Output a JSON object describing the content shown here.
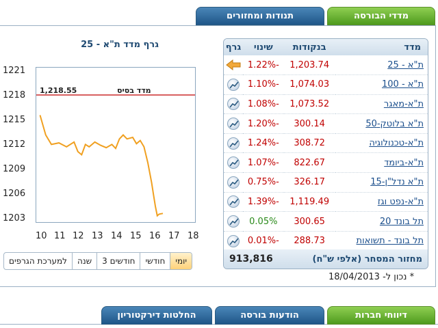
{
  "top_tabs": [
    {
      "label": "מדדי הבורסה",
      "color": "green"
    },
    {
      "label": "תנודות ומחזורים",
      "color": "blue"
    }
  ],
  "chart": {
    "title": "גרף מדד ת\"א - 25",
    "base_label": "מדד בסיס",
    "base_value": "1,218.55"
  },
  "chart_data": {
    "type": "line",
    "title": "גרף מדד ת\"א - 25",
    "xlabel": "",
    "ylabel": "",
    "x_ticks": [
      "10",
      "11",
      "12",
      "13",
      "14",
      "15",
      "16",
      "17",
      "18"
    ],
    "y_ticks": [
      "1221",
      "1218",
      "1215",
      "1212",
      "1209",
      "1206",
      "1203"
    ],
    "xlim": [
      10,
      18
    ],
    "ylim": [
      1202.5,
      1222
    ],
    "base_line": 1218.55,
    "series": [
      {
        "x": [
          10.0,
          10.3,
          10.6,
          11.0,
          11.4,
          11.8,
          12.0,
          12.2,
          12.4,
          12.6,
          12.9,
          13.2,
          13.5,
          13.8,
          14.0,
          14.2,
          14.4,
          14.6,
          14.9,
          15.1,
          15.3,
          15.5,
          15.7,
          15.9,
          16.0,
          16.1,
          16.2,
          16.3,
          16.5
        ],
        "y": [
          1216.0,
          1213.5,
          1212.3,
          1212.5,
          1212.0,
          1212.6,
          1211.4,
          1211.0,
          1212.3,
          1212.0,
          1212.6,
          1212.2,
          1211.9,
          1212.3,
          1211.8,
          1213.0,
          1213.5,
          1213.0,
          1213.2,
          1212.4,
          1212.8,
          1212.0,
          1210.0,
          1207.5,
          1206.0,
          1204.5,
          1203.3,
          1203.5,
          1203.6
        ]
      }
    ]
  },
  "range_buttons": [
    {
      "label": "יומי",
      "active": true
    },
    {
      "label": "חודשי",
      "active": false
    },
    {
      "label": "3 חודשים",
      "active": false
    },
    {
      "label": "שנה",
      "active": false
    },
    {
      "label": "למערכת הגרפים",
      "active": false
    }
  ],
  "table": {
    "headers": {
      "name": "מדד",
      "points": "בנקודות",
      "change": "שינוי",
      "graph": "גרף"
    },
    "rows": [
      {
        "name": "ת\"א - 25",
        "points": "1,203.74",
        "change": "-1.22%",
        "positive": false,
        "icon": "arrow-left-icon"
      },
      {
        "name": "ת\"א - 100",
        "points": "1,074.03",
        "change": "-1.10%",
        "positive": false,
        "icon": "chart-icon"
      },
      {
        "name": "ת\"א-מאגר",
        "points": "1,073.52",
        "change": "-1.08%",
        "positive": false,
        "icon": "chart-icon"
      },
      {
        "name": "ת\"א בלוטק-50",
        "points": "300.14",
        "change": "-1.20%",
        "positive": false,
        "icon": "chart-icon"
      },
      {
        "name": "ת\"א-טכנולוגיה",
        "points": "308.72",
        "change": "-1.24%",
        "positive": false,
        "icon": "chart-icon"
      },
      {
        "name": "ת\"א-ביומד",
        "points": "822.67",
        "change": "-1.07%",
        "positive": false,
        "icon": "chart-icon"
      },
      {
        "name": "ת\"א נדל\"ן-15",
        "points": "326.17",
        "change": "-0.75%",
        "positive": false,
        "icon": "chart-icon"
      },
      {
        "name": "ת\"א-נפט וגז",
        "points": "1,119.49",
        "change": "-1.39%",
        "positive": false,
        "icon": "chart-icon"
      },
      {
        "name": "תל בונד 20",
        "points": "300.65",
        "change": "0.05%",
        "positive": true,
        "icon": "chart-icon"
      },
      {
        "name": "תל בונד - תשואות",
        "points": "288.73",
        "change": "-0.01%",
        "positive": false,
        "icon": "chart-icon"
      }
    ],
    "turnover_label": "מחזור המסחר (אלפי ש\"ח)",
    "turnover_value": "913,816"
  },
  "footnote": "* נכון ל- 18/04/2013",
  "bottom_tabs": [
    {
      "label": "דיווחי חברות",
      "color": "green"
    },
    {
      "label": "הודעות בורסה",
      "color": "blue"
    },
    {
      "label": "החלטות דירקטוריון",
      "color": "blue"
    }
  ],
  "colors": {
    "green_tab": "#4e9a1d",
    "blue_tab": "#1f5688",
    "line": "#f0a020",
    "base_line": "#c00000",
    "negative": "#c00000",
    "positive": "#2a8a1a"
  }
}
